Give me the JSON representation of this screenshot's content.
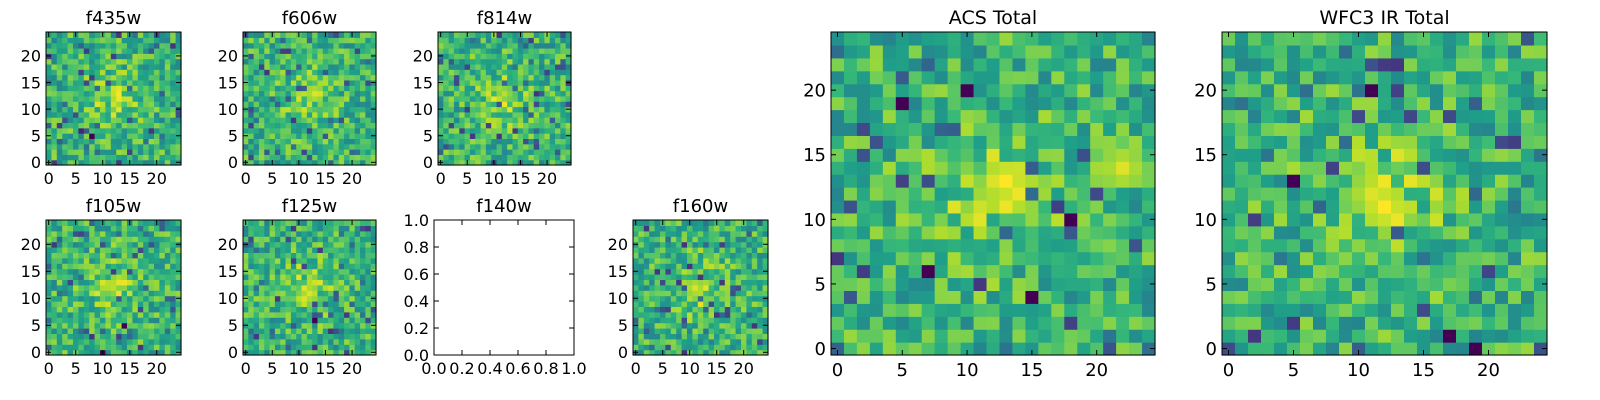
{
  "chart_data": [
    {
      "type": "heatmap",
      "title": "f435w",
      "x_ticks": [
        "0",
        "5",
        "10",
        "15",
        "20"
      ],
      "y_ticks": [
        "0",
        "5",
        "10",
        "15",
        "20"
      ],
      "xlim": [
        -0.5,
        24.5
      ],
      "ylim": [
        -0.5,
        24.5
      ],
      "grid": false,
      "grid_size": [
        25,
        25
      ],
      "colormap": "viridis",
      "features": [
        {
          "x": 8,
          "y": 5,
          "value": 0.0
        },
        {
          "x": 6,
          "y": 6,
          "value": 0.1
        }
      ]
    },
    {
      "type": "heatmap",
      "title": "f606w",
      "x_ticks": [
        "0",
        "5",
        "10",
        "15",
        "20"
      ],
      "y_ticks": [
        "0",
        "5",
        "10",
        "15",
        "20"
      ],
      "xlim": [
        -0.5,
        24.5
      ],
      "ylim": [
        -0.5,
        24.5
      ],
      "grid": false,
      "grid_size": [
        25,
        25
      ],
      "colormap": "viridis",
      "features": [
        {
          "x": 13,
          "y": 13,
          "value": 0.95
        }
      ]
    },
    {
      "type": "heatmap",
      "title": "f814w",
      "x_ticks": [
        "0",
        "5",
        "10",
        "15",
        "20"
      ],
      "y_ticks": [
        "0",
        "5",
        "10",
        "15",
        "20"
      ],
      "xlim": [
        -0.5,
        24.5
      ],
      "ylim": [
        -0.5,
        24.5
      ],
      "grid": false,
      "grid_size": [
        25,
        25
      ],
      "colormap": "viridis",
      "features": [
        {
          "x": 12,
          "y": 13,
          "value": 0.9
        }
      ]
    },
    {
      "type": "heatmap",
      "title": "f105w",
      "x_ticks": [
        "0",
        "5",
        "10",
        "15",
        "20"
      ],
      "y_ticks": [
        "0",
        "5",
        "10",
        "15",
        "20"
      ],
      "xlim": [
        -0.5,
        24.5
      ],
      "ylim": [
        -0.5,
        24.5
      ],
      "grid": false,
      "grid_size": [
        25,
        25
      ],
      "colormap": "viridis",
      "features": [
        {
          "x": 12,
          "y": 12,
          "value": 0.9
        },
        {
          "x": 14,
          "y": 5,
          "value": 0.0
        },
        {
          "x": 10,
          "y": 0,
          "value": 0.0
        }
      ]
    },
    {
      "type": "heatmap",
      "title": "f125w",
      "x_ticks": [
        "0",
        "5",
        "10",
        "15",
        "20"
      ],
      "y_ticks": [
        "0",
        "5",
        "10",
        "15",
        "20"
      ],
      "xlim": [
        -0.5,
        24.5
      ],
      "ylim": [
        -0.5,
        24.5
      ],
      "grid": false,
      "grid_size": [
        25,
        25
      ],
      "colormap": "viridis",
      "features": [
        {
          "x": 12,
          "y": 11,
          "value": 0.95
        },
        {
          "x": 13,
          "y": 6,
          "value": 0.0
        }
      ]
    },
    {
      "type": "empty",
      "title": "f140w",
      "x_ticks": [
        "0.0",
        "0.2",
        "0.4",
        "0.6",
        "0.8",
        "1.0"
      ],
      "y_ticks": [
        "0.0",
        "0.2",
        "0.4",
        "0.6",
        "0.8",
        "1.0"
      ],
      "xlim": [
        0,
        1
      ],
      "ylim": [
        0,
        1
      ],
      "grid": false
    },
    {
      "type": "heatmap",
      "title": "f160w",
      "x_ticks": [
        "0",
        "5",
        "10",
        "15",
        "20"
      ],
      "y_ticks": [
        "0",
        "5",
        "10",
        "15",
        "20"
      ],
      "xlim": [
        -0.5,
        24.5
      ],
      "ylim": [
        -0.5,
        24.5
      ],
      "grid": false,
      "grid_size": [
        25,
        25
      ],
      "colormap": "viridis",
      "features": [
        {
          "x": 11,
          "y": 12,
          "value": 0.95
        }
      ]
    },
    {
      "type": "heatmap",
      "title": "ACS Total",
      "x_ticks": [
        "0",
        "5",
        "10",
        "15",
        "20"
      ],
      "y_ticks": [
        "0",
        "5",
        "10",
        "15",
        "20"
      ],
      "xlim": [
        -0.5,
        24.5
      ],
      "ylim": [
        -0.5,
        24.5
      ],
      "grid": false,
      "grid_size": [
        25,
        25
      ],
      "colormap": "viridis",
      "features": [
        {
          "x": 13,
          "y": 13,
          "value": 1.0
        },
        {
          "x": 22,
          "y": 14,
          "value": 0.95
        },
        {
          "x": 10,
          "y": 20,
          "value": 0.0
        },
        {
          "x": 5,
          "y": 19,
          "value": 0.0
        },
        {
          "x": 7,
          "y": 6,
          "value": 0.0
        },
        {
          "x": 15,
          "y": 4,
          "value": 0.0
        },
        {
          "x": 18,
          "y": 10,
          "value": 0.0
        }
      ]
    },
    {
      "type": "heatmap",
      "title": "WFC3 IR Total",
      "x_ticks": [
        "0",
        "5",
        "10",
        "15",
        "20"
      ],
      "y_ticks": [
        "0",
        "5",
        "10",
        "15",
        "20"
      ],
      "xlim": [
        -0.5,
        24.5
      ],
      "ylim": [
        -0.5,
        24.5
      ],
      "grid": false,
      "grid_size": [
        25,
        25
      ],
      "colormap": "viridis",
      "features": [
        {
          "x": 12,
          "y": 11,
          "value": 1.0
        },
        {
          "x": 11,
          "y": 12,
          "value": 0.95
        },
        {
          "x": 11,
          "y": 20,
          "value": 0.0
        },
        {
          "x": 5,
          "y": 13,
          "value": 0.0
        },
        {
          "x": 17,
          "y": 1,
          "value": 0.0
        },
        {
          "x": 19,
          "y": 0,
          "value": 0.0
        }
      ]
    }
  ]
}
